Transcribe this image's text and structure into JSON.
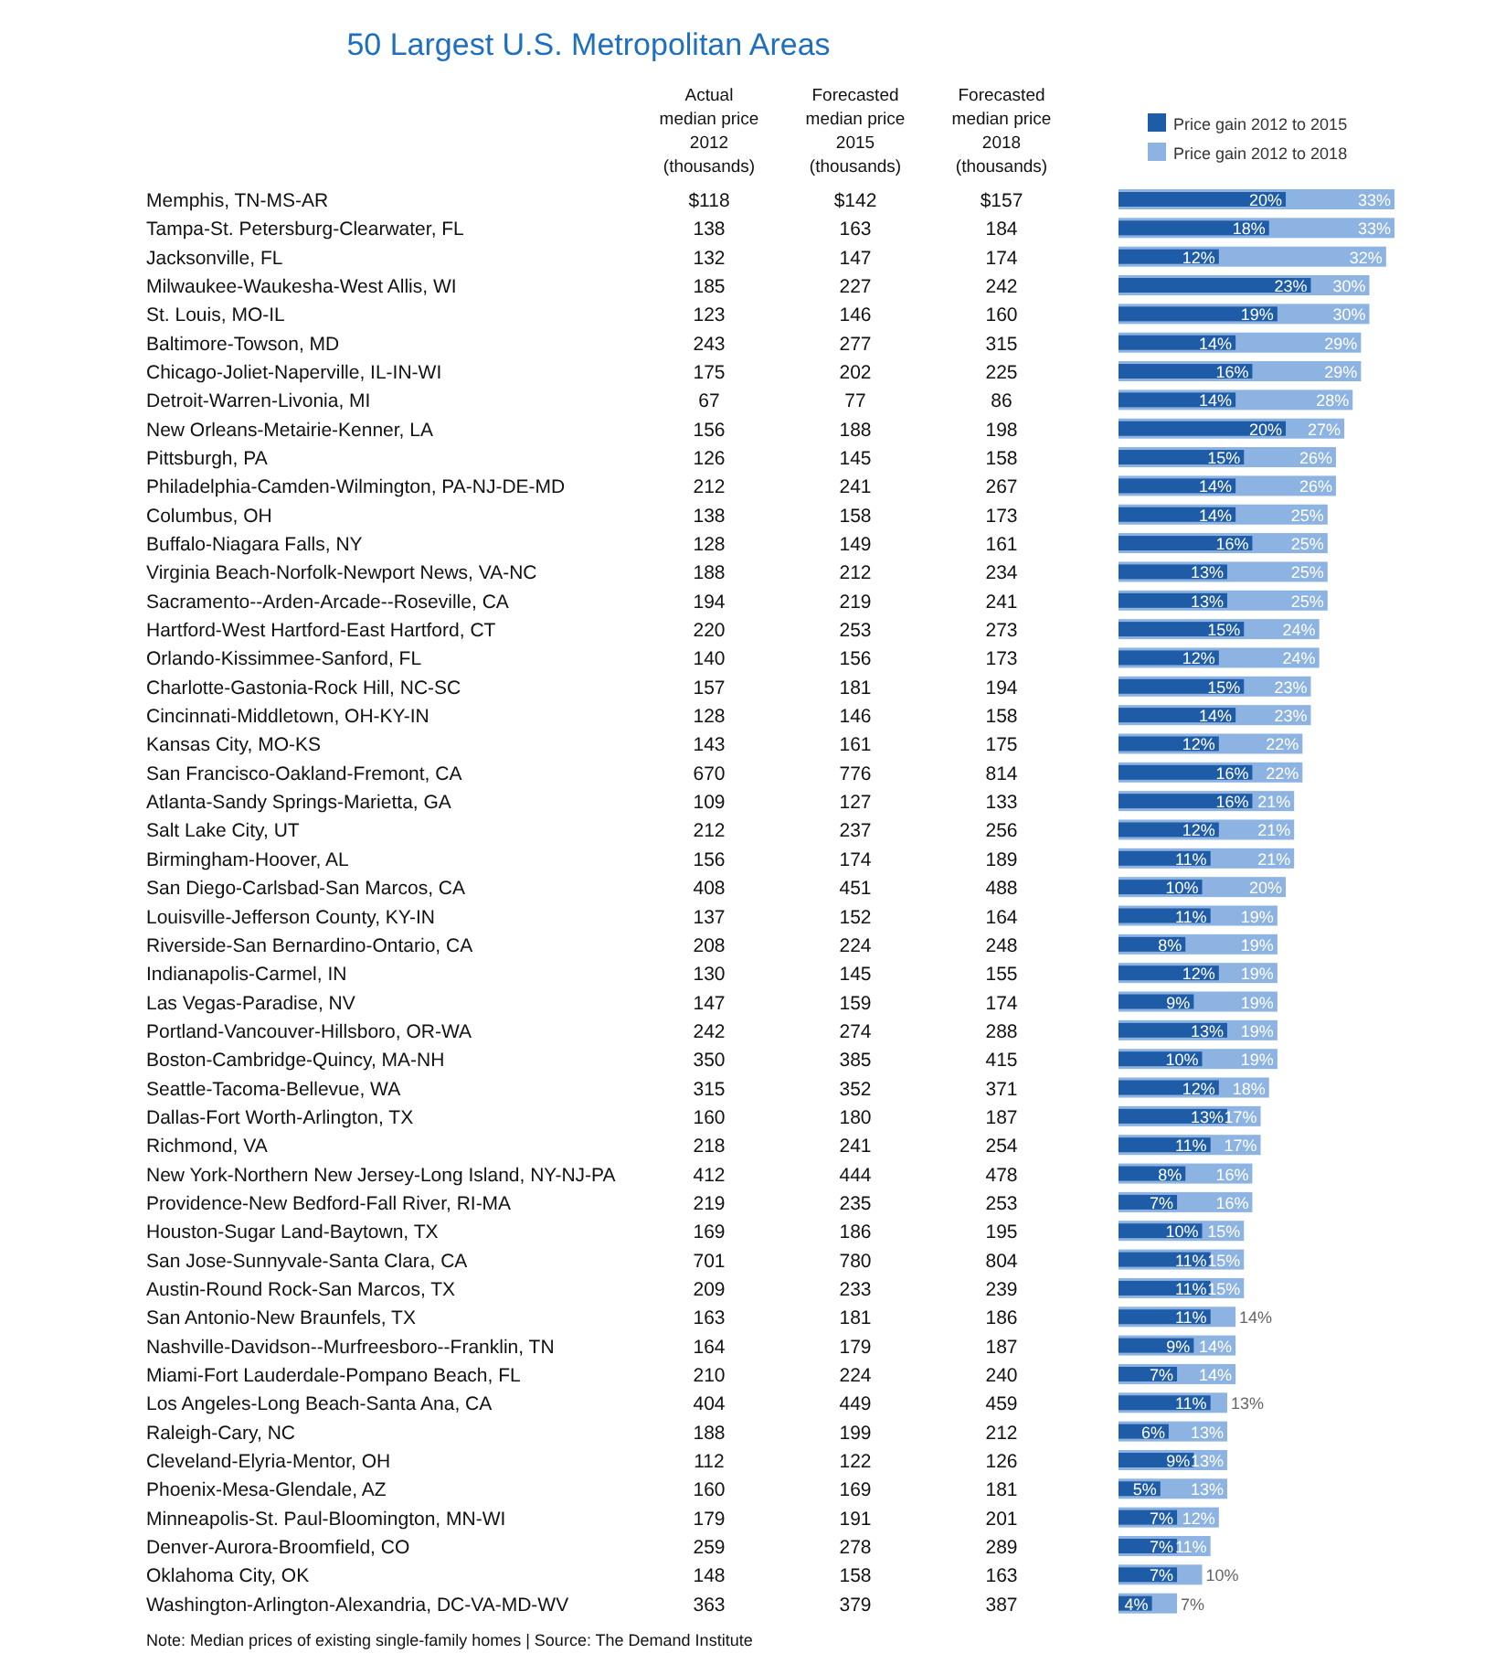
{
  "chart_data": [
    {
      "type": "other",
      "title": "50 Largest U.S. Metropolitan Areas",
      "annotations": [
        "Actual\nmedian price\n2012\n(thousands)",
        "Forecasted\nmedian price\n2015\n(thousands)",
        "Forecasted\nmedian price\n2018\n(thousands)",
        "$118",
        "$142",
        "$157",
        "138",
        "163",
        "184",
        "132",
        "147",
        "174",
        "185",
        "227",
        "242",
        "123",
        "146",
        "160",
        "243",
        "277",
        "315",
        "175",
        "202",
        "225",
        "67",
        "77",
        "86",
        "156",
        "188",
        "198",
        "126",
        "145",
        "158",
        "212",
        "241",
        "267",
        "138",
        "158",
        "173",
        "128",
        "149",
        "161",
        "188",
        "212",
        "234",
        "194",
        "219",
        "241",
        "220",
        "253",
        "273",
        "140",
        "156",
        "173",
        "157",
        "181",
        "194",
        "128",
        "146",
        "158",
        "143",
        "161",
        "175",
        "670",
        "776",
        "814",
        "109",
        "127",
        "133",
        "212",
        "237",
        "256",
        "156",
        "174",
        "189",
        "408",
        "451",
        "488",
        "137",
        "152",
        "164",
        "208",
        "224",
        "248",
        "130",
        "145",
        "155",
        "147",
        "159",
        "174",
        "242",
        "274",
        "288",
        "350",
        "385",
        "415",
        "315",
        "352",
        "371",
        "160",
        "180",
        "187",
        "218",
        "241",
        "254",
        "412",
        "444",
        "478",
        "219",
        "235",
        "253",
        "169",
        "186",
        "195",
        "701",
        "780",
        "804",
        "209",
        "233",
        "239",
        "163",
        "181",
        "186",
        "164",
        "179",
        "187",
        "210",
        "224",
        "240",
        "404",
        "449",
        "459",
        "188",
        "199",
        "212",
        "112",
        "122",
        "126",
        "160",
        "169",
        "181",
        "179",
        "191",
        "201",
        "259",
        "278",
        "289",
        "148",
        "158",
        "163",
        "363",
        "379",
        "387",
        "Note: Median prices of existing single-family homes  |  Source: The Demand Institute"
      ]
    },
    {
      "type": "bar",
      "orientation": "horizontal",
      "xlim": [
        0,
        33
      ],
      "legend": "top right",
      "categories": [
        "Memphis, TN-MS-AR",
        "Tampa-St. Petersburg-Clearwater, FL",
        "Jacksonville, FL",
        "Milwaukee-Waukesha-West Allis, WI",
        "St. Louis, MO-IL",
        "Baltimore-Towson, MD",
        "Chicago-Joliet-Naperville, IL-IN-WI",
        "Detroit-Warren-Livonia, MI",
        "New Orleans-Metairie-Kenner, LA",
        "Pittsburgh, PA",
        "Philadelphia-Camden-Wilmington, PA-NJ-DE-MD",
        "Columbus, OH",
        "Buffalo-Niagara Falls, NY",
        "Virginia Beach-Norfolk-Newport News, VA-NC",
        "Sacramento--Arden-Arcade--Roseville, CA",
        "Hartford-West Hartford-East Hartford, CT",
        "Orlando-Kissimmee-Sanford, FL",
        "Charlotte-Gastonia-Rock Hill, NC-SC",
        "Cincinnati-Middletown, OH-KY-IN",
        "Kansas City, MO-KS",
        "San Francisco-Oakland-Fremont, CA",
        "Atlanta-Sandy Springs-Marietta, GA",
        "Salt Lake City, UT",
        "Birmingham-Hoover, AL",
        "San Diego-Carlsbad-San Marcos, CA",
        "Louisville-Jefferson County, KY-IN",
        "Riverside-San Bernardino-Ontario, CA",
        "Indianapolis-Carmel, IN",
        "Las Vegas-Paradise, NV",
        "Portland-Vancouver-Hillsboro, OR-WA",
        "Boston-Cambridge-Quincy, MA-NH",
        "Seattle-Tacoma-Bellevue, WA",
        "Dallas-Fort Worth-Arlington, TX",
        "Richmond, VA",
        "New York-Northern New Jersey-Long Island, NY-NJ-PA",
        "Providence-New Bedford-Fall River, RI-MA",
        "Houston-Sugar Land-Baytown, TX",
        "San Jose-Sunnyvale-Santa Clara, CA",
        "Austin-Round Rock-San Marcos, TX",
        "San Antonio-New Braunfels, TX",
        "Nashville-Davidson--Murfreesboro--Franklin, TN",
        "Miami-Fort Lauderdale-Pompano Beach, FL",
        "Los Angeles-Long Beach-Santa Ana, CA",
        "Raleigh-Cary, NC",
        "Cleveland-Elyria-Mentor, OH",
        "Phoenix-Mesa-Glendale, AZ",
        "Minneapolis-St. Paul-Bloomington, MN-WI",
        "Denver-Aurora-Broomfield, CO",
        "Oklahoma City, OK",
        "Washington-Arlington-Alexandria, DC-VA-MD-WV"
      ],
      "series": [
        {
          "name": "Price gain 2012 to 2018",
          "color": "#8db3e2",
          "values": [
            33,
            33,
            32,
            30,
            30,
            29,
            29,
            28,
            27,
            26,
            26,
            25,
            25,
            25,
            25,
            24,
            24,
            23,
            23,
            22,
            22,
            21,
            21,
            21,
            20,
            19,
            19,
            19,
            19,
            19,
            19,
            18,
            17,
            17,
            16,
            16,
            15,
            15,
            15,
            14,
            14,
            14,
            13,
            13,
            13,
            13,
            12,
            11,
            10,
            7
          ],
          "value_labels": [
            "33%",
            "33%",
            "32%",
            "30%",
            "30%",
            "29%",
            "29%",
            "28%",
            "27%",
            "26%",
            "26%",
            "25%",
            "25%",
            "25%",
            "25%",
            "24%",
            "24%",
            "23%",
            "23%",
            "22%",
            "22%",
            "21%",
            "21%",
            "21%",
            "20%",
            "19%",
            "19%",
            "19%",
            "19%",
            "19%",
            "19%",
            "18%",
            "17%",
            "17%",
            "16%",
            "16%",
            "15%",
            "15%",
            "15%",
            "14%",
            "14%",
            "14%",
            "13%",
            "13%",
            "13%",
            "13%",
            "12%",
            "11%",
            "10%",
            "7%"
          ]
        },
        {
          "name": "Price gain 2012 to 2015",
          "color": "#1f5ca8",
          "values": [
            20,
            18,
            12,
            23,
            19,
            14,
            16,
            14,
            20,
            15,
            14,
            14,
            16,
            13,
            13,
            15,
            12,
            15,
            14,
            12,
            16,
            16,
            12,
            11,
            10,
            11,
            8,
            12,
            9,
            13,
            10,
            12,
            13,
            11,
            8,
            7,
            10,
            11,
            11,
            11,
            9,
            7,
            11,
            6,
            9,
            5,
            7,
            7,
            7,
            4
          ],
          "value_labels": [
            "20%",
            "18%",
            "12%",
            "23%",
            "19%",
            "14%",
            "16%",
            "14%",
            "20%",
            "15%",
            "14%",
            "14%",
            "16%",
            "13%",
            "13%",
            "15%",
            "12%",
            "15%",
            "14%",
            "12%",
            "16%",
            "16%",
            "12%",
            "11%",
            "10%",
            "11%",
            "8%",
            "12%",
            "9%",
            "13%",
            "10%",
            "12%",
            "13%",
            "11%",
            "8%",
            "7%",
            "10%",
            "11%",
            "11%",
            "11%",
            "9%",
            "7%",
            "11%",
            "6%",
            "9%",
            "5%",
            "7%",
            "7%",
            "7%",
            "4%"
          ]
        }
      ]
    }
  ]
}
